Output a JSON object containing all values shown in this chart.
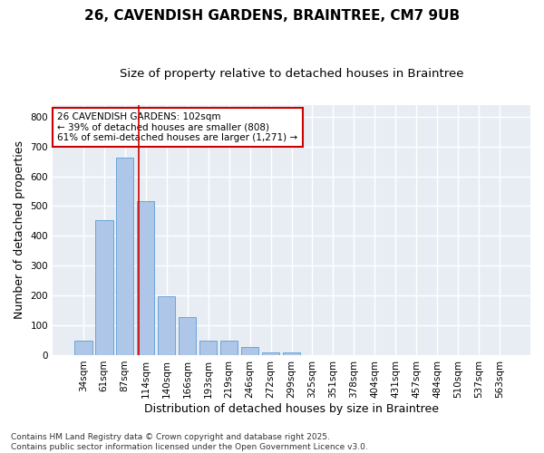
{
  "title": "26, CAVENDISH GARDENS, BRAINTREE, CM7 9UB",
  "subtitle": "Size of property relative to detached houses in Braintree",
  "xlabel": "Distribution of detached houses by size in Braintree",
  "ylabel": "Number of detached properties",
  "bar_color": "#aec6e8",
  "bar_edge_color": "#5b9bd5",
  "background_color": "#e8edf4",
  "grid_color": "#ffffff",
  "fig_background": "#ffffff",
  "annotation_box_color": "#cc0000",
  "vline_color": "#cc0000",
  "categories": [
    "34sqm",
    "61sqm",
    "87sqm",
    "114sqm",
    "140sqm",
    "166sqm",
    "193sqm",
    "219sqm",
    "246sqm",
    "272sqm",
    "299sqm",
    "325sqm",
    "351sqm",
    "378sqm",
    "404sqm",
    "431sqm",
    "457sqm",
    "484sqm",
    "510sqm",
    "537sqm",
    "563sqm"
  ],
  "values": [
    50,
    452,
    662,
    516,
    197,
    128,
    48,
    48,
    26,
    8,
    8,
    0,
    0,
    0,
    0,
    0,
    0,
    0,
    0,
    0,
    0
  ],
  "ylim": [
    0,
    840
  ],
  "yticks": [
    0,
    100,
    200,
    300,
    400,
    500,
    600,
    700,
    800
  ],
  "vline_x": 2.65,
  "annotation_text": "26 CAVENDISH GARDENS: 102sqm\n← 39% of detached houses are smaller (808)\n61% of semi-detached houses are larger (1,271) →",
  "footer_text": "Contains HM Land Registry data © Crown copyright and database right 2025.\nContains public sector information licensed under the Open Government Licence v3.0.",
  "title_fontsize": 11,
  "subtitle_fontsize": 9.5,
  "axis_label_fontsize": 9,
  "tick_fontsize": 7.5,
  "annotation_fontsize": 7.5,
  "footer_fontsize": 6.5
}
